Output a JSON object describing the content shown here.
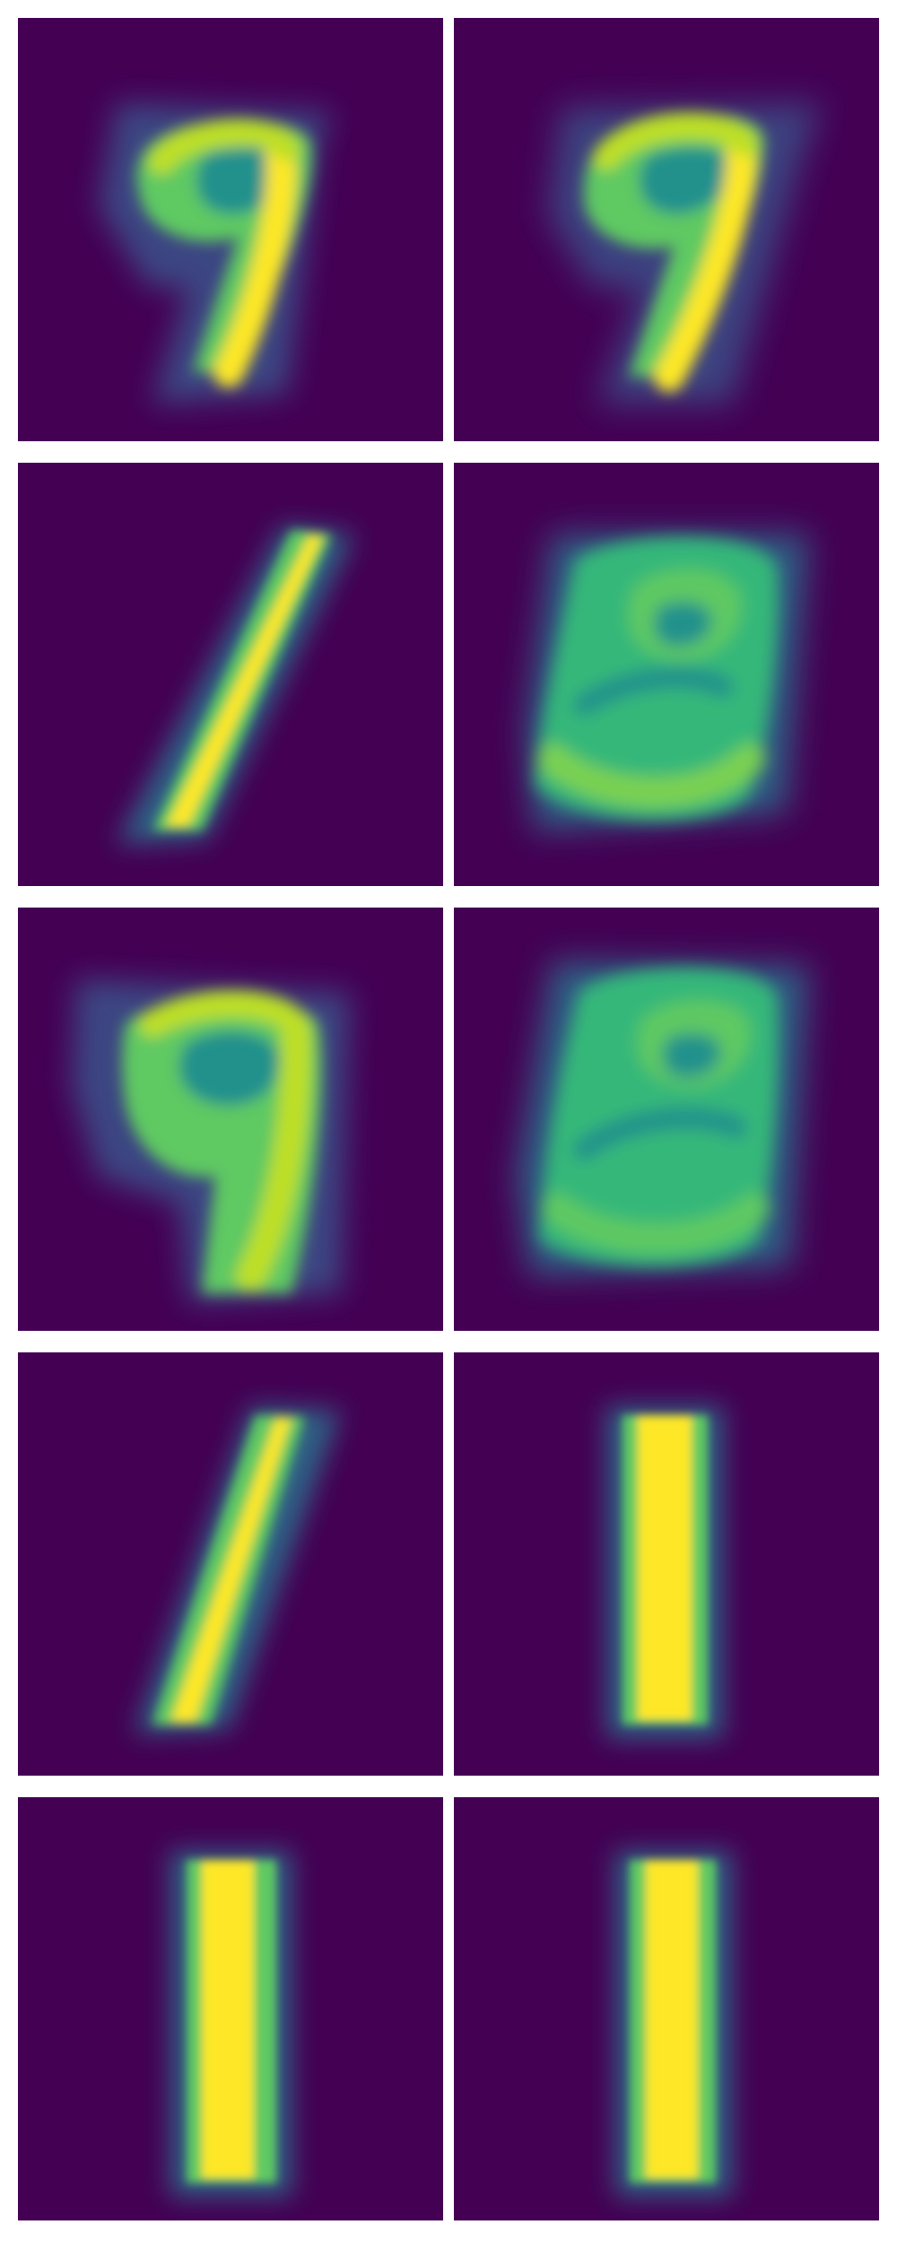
{
  "figure": {
    "rows": 5,
    "cols": 2,
    "colormap": "viridis",
    "background_color": "#ffffff",
    "panel_background": "#440154",
    "colors": {
      "low": "#440154",
      "mid": "#21918c",
      "high": "#fde725"
    },
    "panels": [
      {
        "digit_shape": "nine",
        "style": "blurred reconstruction"
      },
      {
        "digit_shape": "nine",
        "style": "blurred reconstruction"
      },
      {
        "digit_shape": "one",
        "style": "slanted stroke"
      },
      {
        "digit_shape": "eight-like",
        "style": "blurred reconstruction"
      },
      {
        "digit_shape": "nine",
        "style": "blurred reconstruction"
      },
      {
        "digit_shape": "eight-like",
        "style": "blurred reconstruction"
      },
      {
        "digit_shape": "one",
        "style": "slanted stroke"
      },
      {
        "digit_shape": "one",
        "style": "vertical stroke"
      },
      {
        "digit_shape": "one",
        "style": "vertical stroke"
      },
      {
        "digit_shape": "one",
        "style": "vertical stroke"
      }
    ]
  }
}
